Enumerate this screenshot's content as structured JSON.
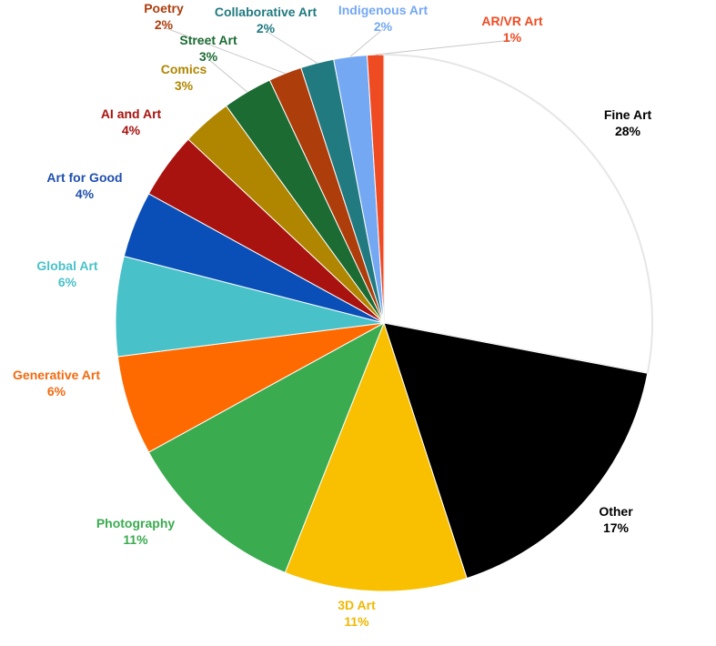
{
  "chart_data": {
    "type": "pie",
    "slices": [
      {
        "label": "Fine Art",
        "value": 28,
        "value_label": "28%",
        "color": "#ffffff",
        "text_color": "#000000"
      },
      {
        "label": "Other",
        "value": 17,
        "value_label": "17%",
        "color": "#000000",
        "text_color": "#000000"
      },
      {
        "label": "3D Art",
        "value": 11,
        "value_label": "11%",
        "color": "#f8c000",
        "text_color": "#f0b800"
      },
      {
        "label": "Photography",
        "value": 11,
        "value_label": "11%",
        "color": "#3aab4f",
        "text_color": "#3aab4f"
      },
      {
        "label": "Generative Art",
        "value": 6,
        "value_label": "6%",
        "color": "#ff6a00",
        "text_color": "#f26a10"
      },
      {
        "label": "Global Art",
        "value": 6,
        "value_label": "6%",
        "color": "#49c1c9",
        "text_color": "#49c1c9"
      },
      {
        "label": "Art for Good",
        "value": 4,
        "value_label": "4%",
        "color": "#0a4fb8",
        "text_color": "#1f4fae"
      },
      {
        "label": "AI and Art",
        "value": 4,
        "value_label": "4%",
        "color": "#a8130f",
        "text_color": "#a8130f"
      },
      {
        "label": "Comics",
        "value": 3,
        "value_label": "3%",
        "color": "#b08600",
        "text_color": "#b08600"
      },
      {
        "label": "Street Art",
        "value": 3,
        "value_label": "3%",
        "color": "#1c6b33",
        "text_color": "#1c6b33"
      },
      {
        "label": "Poetry",
        "value": 2,
        "value_label": "2%",
        "color": "#ae3d0c",
        "text_color": "#ae3d0c"
      },
      {
        "label": "Collaborative Art",
        "value": 2,
        "value_label": "2%",
        "color": "#217a80",
        "text_color": "#217a80"
      },
      {
        "label": "Indigenous Art",
        "value": 2,
        "value_label": "2%",
        "color": "#74a8f3",
        "text_color": "#74a8f3"
      },
      {
        "label": "AR/VR Art",
        "value": 1,
        "value_label": "1%",
        "color": "#ef4b22",
        "text_color": "#ef4b22"
      }
    ]
  }
}
